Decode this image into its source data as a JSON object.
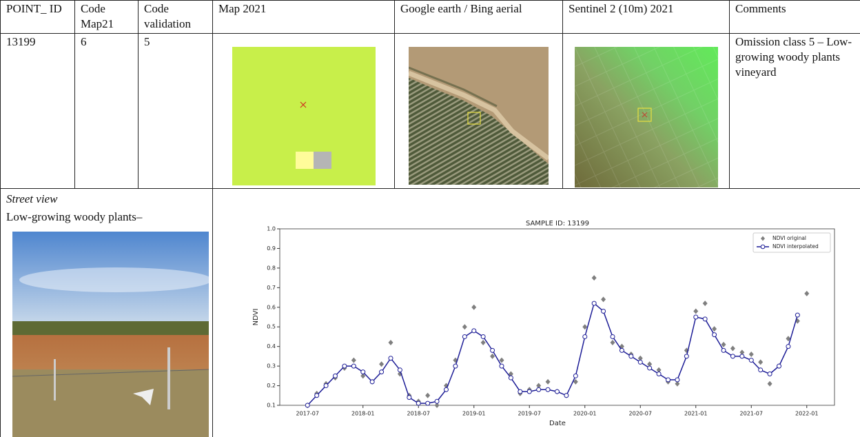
{
  "table": {
    "header": [
      "POINT_ ID",
      "Code Map21",
      "Code validation",
      "Map 2021",
      "Google earth / Bing aerial",
      "Sentinel 2 (10m) 2021",
      "Comments"
    ],
    "row": {
      "point_id": "13199",
      "code_map21": "6",
      "code_validation": "5",
      "comments": "Omission class 5 – Low-growing woody plants vineyard"
    }
  },
  "street_view": {
    "title": "Street view",
    "caption": "Low-growing woody plants–"
  },
  "chart_data": {
    "type": "line",
    "title": "SAMPLE ID: 13199",
    "x_label": "Date",
    "y_label": "NDVI",
    "x": [
      "2017-07",
      "2017-08",
      "2017-09",
      "2017-10",
      "2017-11",
      "2017-12",
      "2018-01",
      "2018-02",
      "2018-03",
      "2018-04",
      "2018-05",
      "2018-06",
      "2018-07",
      "2018-08",
      "2018-09",
      "2018-10",
      "2018-11",
      "2018-12",
      "2019-01",
      "2019-02",
      "2019-03",
      "2019-04",
      "2019-05",
      "2019-06",
      "2019-07",
      "2019-08",
      "2019-09",
      "2019-10",
      "2019-11",
      "2019-12",
      "2020-01",
      "2020-02",
      "2020-03",
      "2020-04",
      "2020-05",
      "2020-06",
      "2020-07",
      "2020-08",
      "2020-09",
      "2020-10",
      "2020-11",
      "2020-12",
      "2021-01",
      "2021-02",
      "2021-03",
      "2021-04",
      "2021-05",
      "2021-06",
      "2021-07",
      "2021-08",
      "2021-09",
      "2021-10",
      "2021-11",
      "2021-12",
      "2022-01"
    ],
    "series": [
      {
        "name": "NDVI original",
        "color": "#7f7f7f",
        "marker": "diamond",
        "line": false,
        "values": [
          0.1,
          0.16,
          0.21,
          0.24,
          0.29,
          0.33,
          0.25,
          0.22,
          0.31,
          0.42,
          0.26,
          0.15,
          0.12,
          0.15,
          0.1,
          0.2,
          0.33,
          0.5,
          0.6,
          0.42,
          0.35,
          0.33,
          0.26,
          0.16,
          0.18,
          0.2,
          0.22,
          0.17,
          0.15,
          0.22,
          0.5,
          0.75,
          0.64,
          0.42,
          0.4,
          0.36,
          0.34,
          0.31,
          0.28,
          0.22,
          0.21,
          0.38,
          0.58,
          0.62,
          0.49,
          0.41,
          0.39,
          0.37,
          0.36,
          0.32,
          0.21,
          0.3,
          0.44,
          0.53,
          0.67
        ]
      },
      {
        "name": "NDVI interpolated",
        "color": "#1c1c96",
        "marker": "circle",
        "line": true,
        "values": [
          0.1,
          0.15,
          0.2,
          0.25,
          0.3,
          0.3,
          0.27,
          0.22,
          0.27,
          0.34,
          0.28,
          0.14,
          0.11,
          0.11,
          0.12,
          0.18,
          0.3,
          0.45,
          0.48,
          0.45,
          0.38,
          0.3,
          0.24,
          0.17,
          0.17,
          0.18,
          0.18,
          0.17,
          0.15,
          0.25,
          0.45,
          0.62,
          0.58,
          0.45,
          0.38,
          0.35,
          0.32,
          0.29,
          0.26,
          0.23,
          0.23,
          0.35,
          0.55,
          0.54,
          0.46,
          0.38,
          0.35,
          0.35,
          0.33,
          0.28,
          0.26,
          0.3,
          0.4,
          0.56,
          null
        ]
      }
    ],
    "xlim": [
      "2017-04",
      "2022-04"
    ],
    "xticks": [
      "2017-07",
      "2018-01",
      "2018-07",
      "2019-01",
      "2019-07",
      "2020-01",
      "2020-07",
      "2021-01",
      "2021-07",
      "2022-01"
    ],
    "ylim": [
      0.1,
      1.0
    ],
    "yticks": [
      0.1,
      0.2,
      0.3,
      0.4,
      0.5,
      0.6,
      0.7,
      0.8,
      0.9,
      {
        "value": 1.0,
        "label": "1.0"
      }
    ],
    "legend": "upper right"
  }
}
